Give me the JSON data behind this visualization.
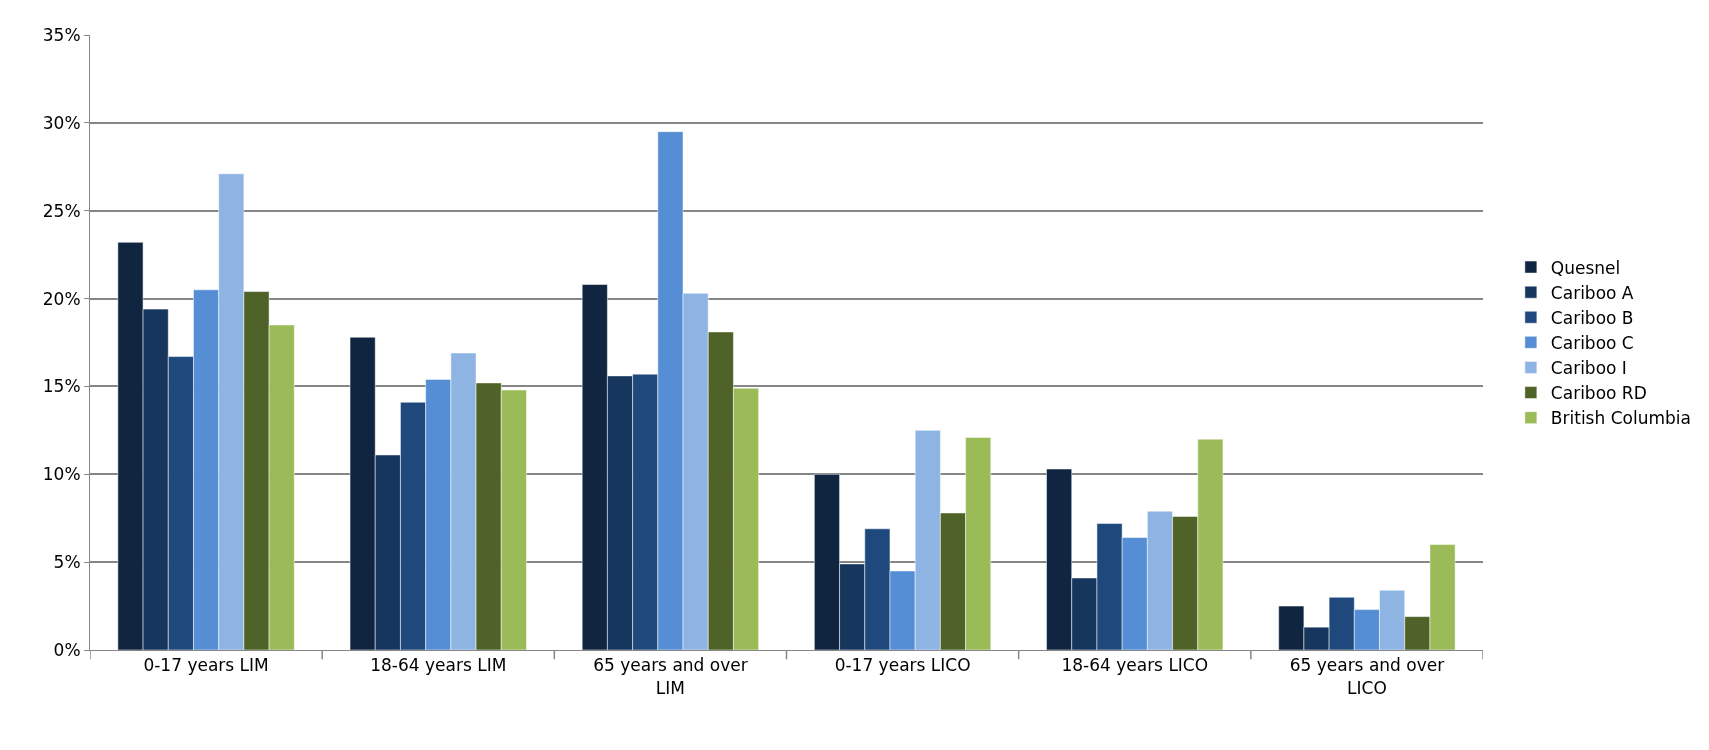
{
  "chart_data": {
    "type": "bar",
    "categories": [
      "0-17 years LIM",
      "18-64 years LIM",
      "65 years and over LIM",
      "0-17 years LICO",
      "18-64 years LICO",
      "65 years and over LICO"
    ],
    "series": [
      {
        "name": "Quesnel",
        "color": "#10253f",
        "values": [
          23.2,
          17.8,
          20.8,
          10.0,
          10.3,
          2.5
        ]
      },
      {
        "name": "Cariboo A",
        "color": "#17365d",
        "values": [
          19.4,
          11.1,
          15.6,
          4.9,
          4.1,
          1.3
        ]
      },
      {
        "name": "Cariboo B",
        "color": "#1f497d",
        "values": [
          16.7,
          14.1,
          15.7,
          6.9,
          7.2,
          3.0
        ]
      },
      {
        "name": "Cariboo C",
        "color": "#558ed5",
        "values": [
          20.5,
          15.4,
          29.5,
          4.5,
          6.4,
          2.3
        ]
      },
      {
        "name": "Cariboo I",
        "color": "#8eb4e3",
        "values": [
          27.1,
          16.9,
          20.3,
          12.5,
          7.9,
          3.4
        ]
      },
      {
        "name": "Cariboo RD",
        "color": "#4f6228",
        "values": [
          20.4,
          15.2,
          18.1,
          7.8,
          7.6,
          1.9
        ]
      },
      {
        "name": "British Columbia",
        "color": "#9bbb59",
        "values": [
          18.5,
          14.8,
          14.9,
          12.1,
          12.0,
          6.0
        ]
      }
    ],
    "ylim": [
      0,
      35
    ],
    "yticks": [
      {
        "value": 0,
        "label": "0%"
      },
      {
        "value": 5,
        "label": "5%"
      },
      {
        "value": 10,
        "label": "10%"
      },
      {
        "value": 15,
        "label": "15%"
      },
      {
        "value": 20,
        "label": "20%"
      },
      {
        "value": 25,
        "label": "25%"
      },
      {
        "value": 30,
        "label": "30%"
      },
      {
        "value": 35,
        "label": "35%"
      }
    ],
    "grid": "y",
    "legend": "right"
  }
}
